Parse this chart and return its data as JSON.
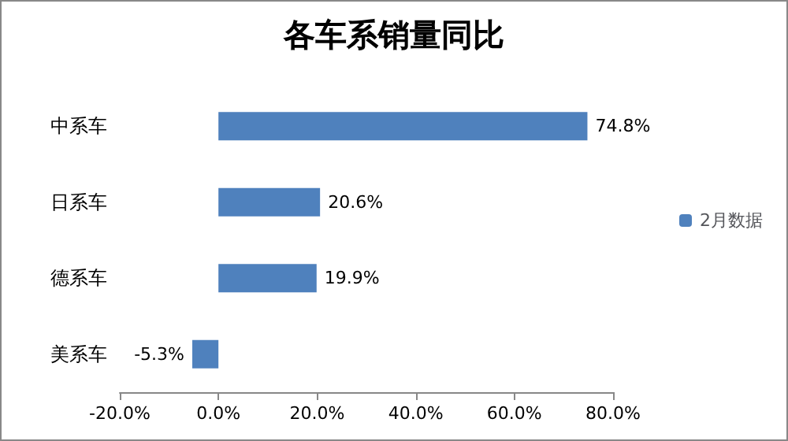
{
  "chart_data": {
    "type": "bar",
    "orientation": "horizontal",
    "title": "各车系销量同比",
    "categories": [
      "中系车",
      "日系车",
      "德系车",
      "美系车"
    ],
    "series": [
      {
        "name": "2月数据",
        "color": "#4f81bd",
        "values": [
          74.8,
          20.6,
          19.9,
          -5.3
        ],
        "value_labels": [
          "74.8%",
          "20.6%",
          "19.9%",
          "-5.3%"
        ]
      }
    ],
    "xlim": [
      -20,
      80
    ],
    "xticks": [
      {
        "value": -20,
        "label": "-20.0%"
      },
      {
        "value": 0,
        "label": "0.0%"
      },
      {
        "value": 20,
        "label": "20.0%"
      },
      {
        "value": 40,
        "label": "40.0%"
      },
      {
        "value": 60,
        "label": "60.0%"
      },
      {
        "value": 80,
        "label": "80.0%"
      }
    ],
    "grid": false,
    "legend": "right"
  }
}
